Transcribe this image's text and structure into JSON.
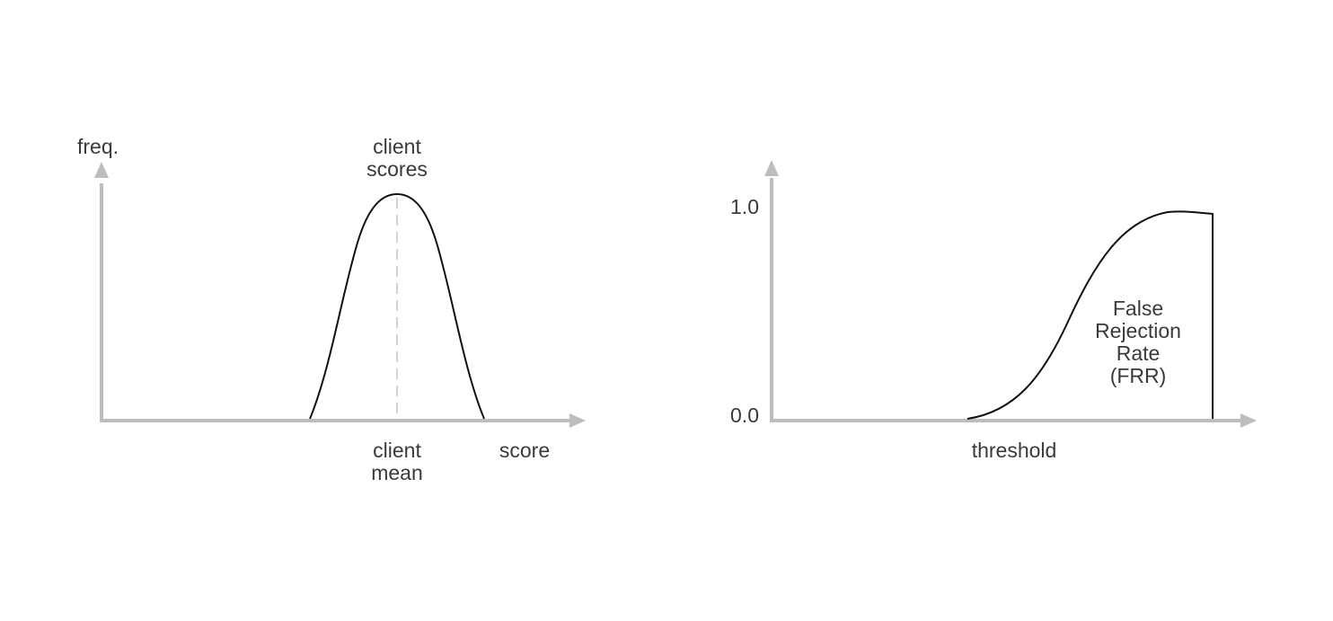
{
  "left_panel": {
    "y_axis_label": "freq.",
    "x_axis_label": "score",
    "curve_label_line1": "client",
    "curve_label_line2": "scores",
    "mean_label_line1": "client",
    "mean_label_line2": "mean"
  },
  "right_panel": {
    "y_tick_top": "1.0",
    "y_tick_bottom": "0.0",
    "x_axis_label": "threshold",
    "curve_label_line1": "False",
    "curve_label_line2": "Rejection",
    "curve_label_line3": "Rate",
    "curve_label_line4": "(FRR)"
  },
  "colors": {
    "axis": "#bdbdbd",
    "curve": "#111111",
    "text": "#3a3a3a",
    "mean_line": "#c4c4c4"
  }
}
